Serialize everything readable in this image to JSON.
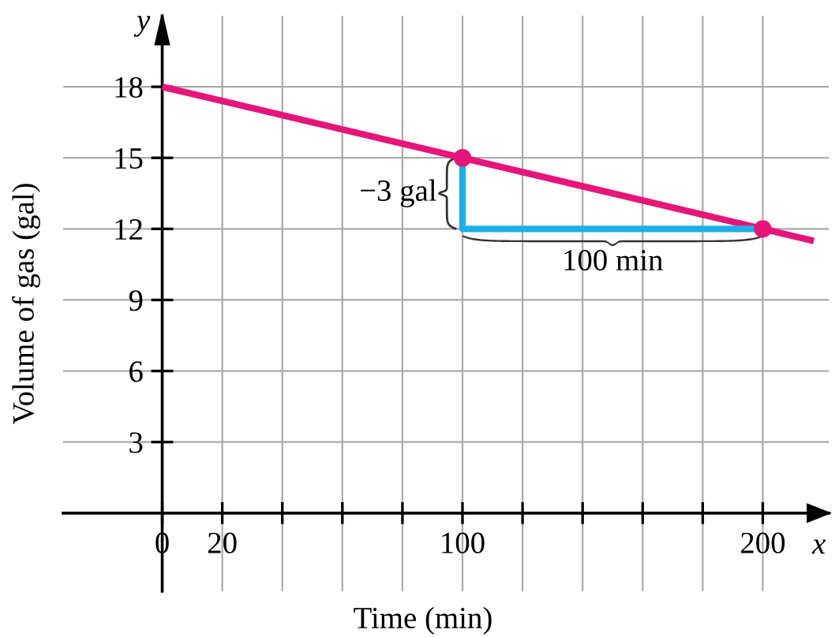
{
  "chart_data": {
    "type": "line",
    "xlabel": "Time (min)",
    "ylabel": "Volume of gas (gal)",
    "series": [
      {
        "color": "#e6157a",
        "x": [
          0,
          217
        ],
        "values": [
          18,
          11.49
        ]
      },
      {
        "color": "#1eaee8",
        "x": [
          100,
          100,
          200
        ],
        "values": [
          15,
          12,
          12
        ]
      },
      {
        "type": "scatter",
        "color": "#e6157a",
        "marker": "circle",
        "x": [
          100,
          200
        ],
        "values": [
          15,
          12
        ]
      }
    ],
    "xlim": [
      -33,
      222
    ],
    "ylim": [
      -3.3,
      21
    ],
    "xticks": [
      {
        "value": 0,
        "label": "0"
      },
      20,
      {
        "value": 40,
        "label": null
      },
      {
        "value": 60,
        "label": null
      },
      {
        "value": 80,
        "label": null
      },
      100,
      {
        "value": 120,
        "label": null
      },
      {
        "value": 140,
        "label": null
      },
      {
        "value": 160,
        "label": null
      },
      {
        "value": 180,
        "label": null
      },
      200
    ],
    "yticks": [
      3,
      6,
      9,
      12,
      15,
      18
    ],
    "grid": true,
    "legend": false,
    "annotations": [
      {
        "text": "−3 gal",
        "x": 100,
        "y": 13.5
      },
      {
        "text": "100 min",
        "x": 150,
        "y": 12
      },
      "x",
      "y"
    ]
  }
}
